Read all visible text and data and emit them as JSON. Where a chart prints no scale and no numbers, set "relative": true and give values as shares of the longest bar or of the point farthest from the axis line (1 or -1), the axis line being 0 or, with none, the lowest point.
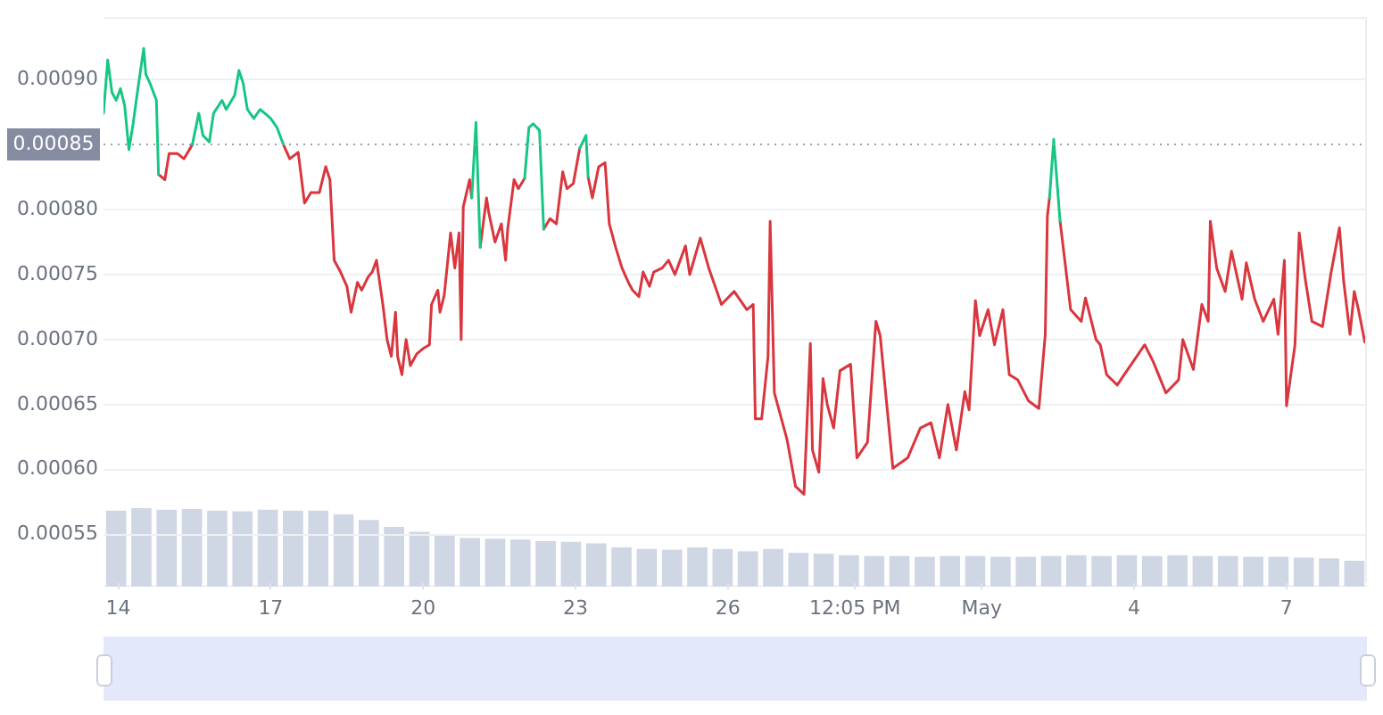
{
  "chart_data": [
    {
      "type": "line",
      "x": [
        "--04-13T17:00",
        "--04-13T19:00",
        "--04-13T21:00",
        "--04-13T23:00",
        "--04-14T01:00",
        "--04-14T03:00",
        "--04-14T05:00",
        "--04-14T07:00",
        "--04-14T09:00",
        "--04-14T12:00",
        "--04-14T13:00",
        "--04-14T15:00",
        "--04-14T18:00",
        "--04-14T19:00",
        "--04-14T22:00",
        "--04-15T00:00",
        "--04-15T04:00",
        "--04-15T07:00",
        "--04-15T11:00",
        "--04-15T14:00",
        "--04-15T16:00",
        "--04-15T19:00",
        "--04-15T21:00",
        "--04-16T01:00",
        "--04-16T03:00",
        "--04-16T07:00",
        "--04-16T09:00",
        "--04-16T11:00",
        "--04-16T13:00",
        "--04-16T16:00",
        "--04-16T19:00",
        "--04-16T22:00",
        "--04-17T00:00",
        "--04-17T03:00",
        "--04-17T06:00",
        "--04-17T09:00",
        "--04-17T13:00",
        "--04-17T16:00",
        "--04-17T19:00",
        "--04-17T23:00",
        "--04-18T02:00",
        "--04-18T04:00",
        "--04-18T06:00",
        "--04-18T09:00",
        "--04-18T12:00",
        "--04-18T14:00",
        "--04-18T17:00",
        "--04-18T19:00",
        "--04-18T22:00",
        "--04-19T00:00",
        "--04-19T02:00",
        "--04-19T05:00",
        "--04-19T07:00",
        "--04-19T09:00",
        "--04-19T11:00",
        "--04-19T12:00",
        "--04-19T14:00",
        "--04-19T16:00",
        "--04-19T18:00",
        "--04-19T21:00",
        "--04-20T00:00",
        "--04-20T03:00",
        "--04-20T04:00",
        "--04-20T07:00",
        "--04-20T08:00",
        "--04-20T10:00",
        "--04-20T13:00",
        "--04-20T15:00",
        "--04-20T17:00",
        "--04-20T18:00",
        "--04-20T19:00",
        "--04-20T22:00",
        "--04-20T23:00",
        "--04-21T01:00",
        "--04-21T03:00",
        "--04-21T06:00",
        "--04-21T07:00",
        "--04-21T10:00",
        "--04-21T13:00",
        "--04-21T15:00",
        "--04-21T16:00",
        "--04-21T19:00",
        "--04-21T21:00",
        "--04-22T00:00",
        "--04-22T02:00",
        "--04-22T04:00",
        "--04-22T07:00",
        "--04-22T09:00",
        "--04-22T12:00",
        "--04-22T15:00",
        "--04-22T18:00",
        "--04-22T20:00",
        "--04-22T23:00",
        "--04-23T02:00",
        "--04-23T05:00",
        "--04-23T06:00",
        "--04-23T08:00",
        "--04-23T11:00",
        "--04-23T14:00",
        "--04-23T16:00",
        "--04-23T19:00",
        "--04-23T22:00",
        "--04-24T01:00",
        "--04-24T03:00",
        "--04-24T06:00",
        "--04-24T08:00",
        "--04-24T11:00",
        "--04-24T13:00",
        "--04-24T17:00",
        "--04-24T20:00",
        "--04-24T23:00",
        "--04-25T04:00",
        "--04-25T06:00",
        "--04-25T11:00",
        "--04-25T15:00",
        "--04-25T21:00",
        "--04-26T03:00",
        "--04-26T09:00",
        "--04-26T12:00",
        "--04-26T13:00",
        "--04-26T16:00",
        "--04-26T19:00",
        "--04-26T20:00",
        "--04-26T22:00",
        "--04-27T04:00",
        "--04-27T08:00",
        "--04-27T12:00",
        "--04-27T15:00",
        "--04-27T16:00",
        "--04-27T19:00",
        "--04-27T21:00",
        "--04-27T23:00",
        "--04-28T02:00",
        "--04-28T05:00",
        "--04-28T10:00",
        "--04-28T13:00",
        "--04-28T18:00",
        "--04-28T22:00",
        "--04-29T00:00",
        "--04-29T06:00",
        "--04-29T13:00",
        "--04-29T19:00",
        "--04-30T00:00",
        "--04-30T04:00",
        "--04-30T08:00",
        "--04-30T12:00",
        "--04-30T16:00",
        "--04-30T18:00",
        "--04-30T21:00",
        "--04-30T23:00",
        "--05-01T03:00",
        "--05-01T06:00",
        "--05-01T10:00",
        "--05-01T13:00",
        "--05-01T17:00",
        "--05-01T22:00",
        "--05-02T03:00",
        "--05-02T06:00",
        "--05-02T07:00",
        "--05-02T08:00",
        "--05-02T10:00",
        "--05-02T13:00",
        "--05-02T15:00",
        "--05-02T18:00",
        "--05-02T23:00",
        "--05-03T01:00",
        "--05-03T06:00",
        "--05-03T08:00",
        "--05-03T11:00",
        "--05-03T16:00",
        "--05-03T21:00",
        "--05-04T05:00",
        "--05-04T09:00",
        "--05-04T15:00",
        "--05-04T21:00",
        "--05-04T23:00",
        "--05-05T04:00",
        "--05-05T08:00",
        "--05-05T11:00",
        "--05-05T12:00",
        "--05-05T15:00",
        "--05-05T19:00",
        "--05-05T22:00",
        "--05-06T03:00",
        "--05-06T05:00",
        "--05-06T09:00",
        "--05-06T13:00",
        "--05-06T18:00",
        "--05-06T20:00",
        "--05-06T23:00",
        "--05-07T00:00",
        "--05-07T04:00",
        "--05-07T06:00",
        "--05-07T09:00",
        "--05-07T12:00",
        "--05-07T17:00",
        "--05-07T21:00",
        "--05-08T01:00",
        "--05-08T03:00",
        "--05-08T06:00",
        "--05-08T08:00",
        "--05-08T10:00",
        "--05-08T13:00"
      ],
      "series": [
        {
          "color": "#16c784",
          "values": [
            0.000874,
            0.000915,
            0.00089,
            0.000884,
            0.000893,
            0.00088,
            0.000846,
            0.000866,
            0.00089,
            0.000924,
            0.000904,
            0.000897,
            0.000884,
            0.000827,
            null,
            null,
            null,
            null,
            0.00085,
            0.000874,
            0.000857,
            0.000852,
            0.000874,
            0.000884,
            0.000877,
            0.000888,
            0.000907,
            0.000897,
            0.000877,
            0.00087,
            0.000877,
            0.000873,
            0.00087,
            0.000863,
            0.00085,
            null,
            null,
            null,
            null,
            null,
            null,
            null,
            null,
            null,
            null,
            null,
            null,
            null,
            null,
            null,
            null,
            null,
            null,
            null,
            null,
            null,
            null,
            null,
            null,
            null,
            null,
            null,
            null,
            null,
            null,
            null,
            null,
            null,
            null,
            null,
            null,
            null,
            0.000809,
            0.000867,
            0.000771,
            null,
            null,
            null,
            null,
            null,
            null,
            null,
            null,
            0.000824,
            0.000863,
            0.000866,
            0.000861,
            0.000785,
            null,
            null,
            null,
            null,
            null,
            0.000847,
            0.000857,
            0.000825,
            null,
            null,
            null,
            null,
            null,
            null,
            null,
            null,
            null,
            null,
            null,
            null,
            null,
            null,
            null,
            null,
            null,
            null,
            null,
            null,
            null,
            null,
            null,
            null,
            null,
            null,
            null,
            null,
            null,
            null,
            null,
            null,
            null,
            null,
            null,
            null,
            null,
            null,
            null,
            null,
            null,
            null,
            null,
            null,
            null,
            null,
            null,
            null,
            null,
            null,
            null,
            null,
            null,
            null,
            null,
            null,
            null,
            null,
            null,
            null,
            null,
            null,
            null,
            0.000809,
            0.000854,
            0.000791,
            null,
            null,
            null,
            null,
            null,
            null,
            null,
            null,
            null,
            null,
            null,
            null,
            null,
            null,
            null,
            null,
            null,
            null,
            null,
            null,
            null,
            null,
            null,
            null,
            null,
            null,
            null,
            null,
            null,
            null,
            null,
            null,
            null,
            null,
            null,
            null,
            null,
            null,
            null,
            null,
            null
          ]
        },
        {
          "color": "#d9363e",
          "values": [
            null,
            null,
            null,
            null,
            null,
            null,
            null,
            null,
            null,
            null,
            null,
            null,
            null,
            0.000827,
            0.000823,
            0.000843,
            0.000843,
            0.000839,
            0.00085,
            null,
            null,
            null,
            null,
            null,
            null,
            null,
            null,
            null,
            null,
            null,
            null,
            null,
            null,
            null,
            0.00085,
            0.000839,
            0.000844,
            0.000805,
            0.000813,
            0.000813,
            0.000833,
            0.000823,
            0.000761,
            0.000752,
            0.000741,
            0.000721,
            0.000744,
            0.000738,
            0.000748,
            0.000752,
            0.000761,
            0.000727,
            0.0007,
            0.000687,
            0.000721,
            0.000687,
            0.000673,
            0.0007,
            0.00068,
            0.000689,
            0.000693,
            0.000696,
            0.000727,
            0.000738,
            0.000721,
            0.000734,
            0.000782,
            0.000755,
            0.000782,
            0.0007,
            0.000802,
            0.000823,
            0.000809,
            null,
            0.000771,
            0.000809,
            0.000798,
            0.000775,
            0.000789,
            0.000761,
            0.000785,
            0.000823,
            0.000816,
            0.000824,
            null,
            null,
            null,
            0.000785,
            0.000793,
            0.000789,
            0.000829,
            0.000816,
            0.00082,
            0.000847,
            null,
            0.000825,
            0.000809,
            0.000833,
            0.000836,
            0.000789,
            0.000771,
            0.000755,
            0.000744,
            0.000738,
            0.000733,
            0.000752,
            0.000741,
            0.000752,
            0.000755,
            0.000761,
            0.00075,
            0.000772,
            0.00075,
            0.000778,
            0.000755,
            0.000727,
            0.000737,
            0.000723,
            0.000727,
            0.000639,
            0.000639,
            0.000687,
            0.000791,
            0.000659,
            0.000623,
            0.000587,
            0.000581,
            0.000697,
            0.000615,
            0.000598,
            0.00067,
            0.00065,
            0.000632,
            0.000676,
            0.000681,
            0.000609,
            0.000621,
            0.000714,
            0.000703,
            0.000601,
            0.000609,
            0.000632,
            0.000636,
            0.000609,
            0.00065,
            0.000615,
            0.00066,
            0.000646,
            0.00073,
            0.000703,
            0.000723,
            0.000696,
            0.000723,
            0.000673,
            0.000669,
            0.000653,
            0.000647,
            0.000704,
            0.000795,
            0.000809,
            null,
            0.000791,
            0.000764,
            0.000723,
            0.000714,
            0.000732,
            0.0007,
            0.000696,
            0.000673,
            0.000665,
            0.000677,
            0.000696,
            0.000683,
            0.000659,
            0.000669,
            0.0007,
            0.000677,
            0.000727,
            0.000714,
            0.000791,
            0.000755,
            0.000737,
            0.000768,
            0.000731,
            0.000759,
            0.000731,
            0.000714,
            0.000731,
            0.000704,
            0.000761,
            0.000649,
            0.000696,
            0.000782,
            0.000745,
            0.000714,
            0.00071,
            0.000751,
            0.000786,
            0.000745,
            0.000704,
            0.000737,
            0.000723,
            0.000698
          ]
        }
      ],
      "xlim": [
        "--04-13T17:00",
        "--05-08T14:00"
      ],
      "xticks": [
        {
          "value": "--04-14",
          "label": "14"
        },
        {
          "value": "--04-17",
          "label": "17"
        },
        {
          "value": "--04-20",
          "label": "20"
        },
        {
          "value": "--04-23",
          "label": "23"
        },
        {
          "value": "--04-26",
          "label": "26"
        },
        {
          "value": "--04-28T12:05",
          "label": "12:05 PM"
        },
        {
          "value": "--05-01",
          "label": "May"
        },
        {
          "value": "--05-04",
          "label": "4"
        },
        {
          "value": "--05-07",
          "label": "7"
        }
      ],
      "ylim": [
        0.000513,
        0.000948
      ],
      "yticks": [
        {
          "value": 0.00055,
          "label": "0.00055"
        },
        {
          "value": 0.0006,
          "label": "0.00060"
        },
        {
          "value": 0.00065,
          "label": "0.00065"
        },
        {
          "value": 0.0007,
          "label": "0.00070"
        },
        {
          "value": 0.00075,
          "label": "0.00075"
        },
        {
          "value": 0.0008,
          "label": "0.00080"
        },
        {
          "value": 0.0009,
          "label": "0.00090"
        }
      ],
      "ref_lines": [
        {
          "axis": "y",
          "value": 0.00085,
          "label": "0.00085",
          "color": "#9aa0ab",
          "line_style": "dotted"
        }
      ],
      "grid": "y",
      "legend": false
    },
    {
      "type": "bar",
      "relative": true,
      "color": "#cfd6e4",
      "tick_labels": false,
      "categories": [
        null,
        null,
        null,
        null,
        null,
        null,
        null,
        null,
        null,
        null,
        null,
        null,
        null,
        null,
        null,
        null,
        null,
        null,
        null,
        null,
        null,
        null,
        null,
        null,
        null,
        null,
        null,
        null,
        null,
        null,
        null,
        null,
        null,
        null,
        null,
        null,
        null,
        null,
        null,
        null,
        null,
        null,
        null,
        null,
        null,
        null,
        null,
        null,
        null,
        null
      ],
      "values": [
        0.97,
        1,
        0.98,
        0.99,
        0.97,
        0.96,
        0.98,
        0.97,
        0.97,
        0.92,
        0.85,
        0.76,
        0.7,
        0.65,
        0.62,
        0.61,
        0.6,
        0.58,
        0.57,
        0.55,
        0.5,
        0.48,
        0.47,
        0.5,
        0.48,
        0.45,
        0.48,
        0.43,
        0.42,
        0.4,
        0.39,
        0.39,
        0.38,
        0.39,
        0.39,
        0.38,
        0.38,
        0.39,
        0.4,
        0.39,
        0.4,
        0.39,
        0.4,
        0.39,
        0.39,
        0.38,
        0.38,
        0.37,
        0.36,
        0.33
      ]
    }
  ]
}
